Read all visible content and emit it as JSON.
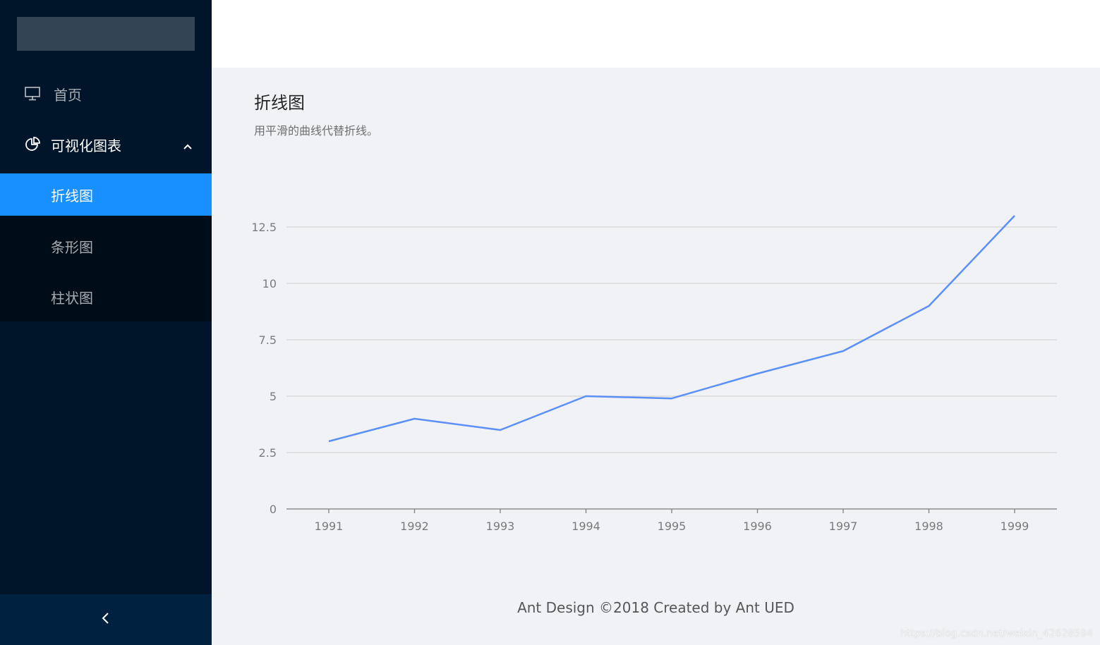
{
  "sidebar": {
    "items": [
      {
        "label": "首页",
        "icon": "desktop-icon"
      },
      {
        "label": "可视化图表",
        "icon": "pie-chart-icon",
        "expanded": true,
        "children": [
          {
            "label": "折线图",
            "active": true
          },
          {
            "label": "条形图",
            "active": false
          },
          {
            "label": "柱状图",
            "active": false
          }
        ]
      }
    ]
  },
  "main": {
    "title": "折线图",
    "description": "用平滑的曲线代替折线。"
  },
  "footer": {
    "text": "Ant Design ©2018 Created by Ant UED"
  },
  "watermark": "https://blog.csdn.net/weixin_42628594",
  "colors": {
    "sider_bg": "#001529",
    "active": "#1890ff",
    "line": "#5b8ff9"
  },
  "chart_data": {
    "type": "line",
    "x": [
      "1991",
      "1992",
      "1993",
      "1994",
      "1995",
      "1996",
      "1997",
      "1998",
      "1999"
    ],
    "series": [
      {
        "values": [
          3,
          4,
          3.5,
          5,
          4.9,
          6,
          7,
          9,
          13
        ]
      }
    ],
    "yticks": [
      "0",
      "2.5",
      "5",
      "7.5",
      "10",
      "12.5"
    ],
    "ylim": [
      0,
      13
    ],
    "grid": true
  }
}
